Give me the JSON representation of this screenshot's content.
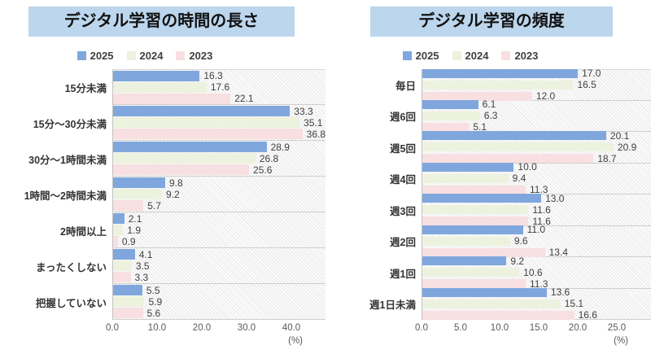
{
  "chart_data": [
    {
      "type": "bar",
      "orientation": "horizontal",
      "title": "デジタル学習の時間の長さ",
      "categories": [
        "15分未満",
        "15分〜30分未満",
        "30分〜1時間未満",
        "1時間〜2時間未満",
        "2時間以上",
        "まったくしない",
        "把握していない"
      ],
      "series": [
        {
          "name": "2025",
          "color": "#7fa7dd",
          "values": [
            16.3,
            33.3,
            28.9,
            9.8,
            2.1,
            4.1,
            5.5
          ]
        },
        {
          "name": "2024",
          "color": "#edf2df",
          "values": [
            17.6,
            35.1,
            26.8,
            9.2,
            1.9,
            3.5,
            5.9
          ]
        },
        {
          "name": "2023",
          "color": "#f8dfe1",
          "values": [
            22.1,
            36.8,
            25.6,
            5.7,
            0.9,
            3.3,
            5.6
          ]
        }
      ],
      "xlim": [
        0,
        40
      ],
      "xticks": [
        "0.0",
        "10.0",
        "20.0",
        "30.0",
        "40.0"
      ],
      "x_unit": "(%)",
      "legend_position": "top",
      "grid": "category-separator-rows",
      "plot_background": "diagonal-hatch"
    },
    {
      "type": "bar",
      "orientation": "horizontal",
      "title": "デジタル学習の頻度",
      "categories": [
        "毎日",
        "週6回",
        "週5回",
        "週4回",
        "週3回",
        "週2回",
        "週1回",
        "週1日未満"
      ],
      "series": [
        {
          "name": "2025",
          "color": "#7fa7dd",
          "values": [
            17.0,
            6.1,
            20.1,
            10.0,
            13.0,
            11.0,
            9.2,
            13.6
          ]
        },
        {
          "name": "2024",
          "color": "#edf2df",
          "values": [
            16.5,
            6.3,
            20.9,
            9.4,
            11.6,
            9.6,
            10.6,
            15.1
          ]
        },
        {
          "name": "2023",
          "color": "#f8dfe1",
          "values": [
            12.0,
            5.1,
            18.7,
            11.3,
            11.6,
            13.4,
            11.3,
            16.6
          ]
        }
      ],
      "xlim": [
        0,
        25
      ],
      "xticks": [
        "0.0",
        "5.0",
        "10.0",
        "15.0",
        "20.0",
        "25.0"
      ],
      "x_unit": "(%)",
      "legend_position": "top",
      "grid": "category-separator-rows",
      "plot_background": "diagonal-hatch"
    }
  ],
  "style_colors": {
    "title_background": "#bcd6ee",
    "title_text": "#111111",
    "value_label_text": "#404040",
    "axis_text": "#595959",
    "series_2025": "#7fa7dd",
    "series_2024": "#edf2df",
    "series_2023": "#f8dfe1"
  }
}
